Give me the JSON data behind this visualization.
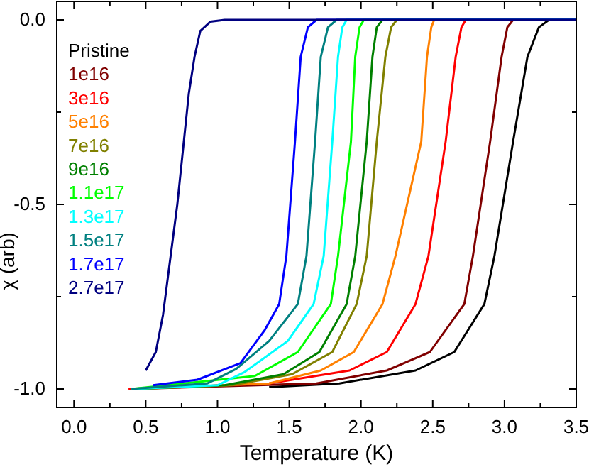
{
  "chart_data": {
    "type": "line",
    "xlabel": "Temperature (K)",
    "ylabel": "χ (arb)",
    "xlim": [
      -0.12,
      3.5
    ],
    "ylim": [
      -1.05,
      0.05
    ],
    "xticks": [
      {
        "value": 0,
        "label": "0.0"
      },
      {
        "value": 0.25,
        "label": null
      },
      {
        "value": 0.5,
        "label": "0.5"
      },
      {
        "value": 0.75,
        "label": null
      },
      {
        "value": 1,
        "label": "1.0"
      },
      {
        "value": 1.25,
        "label": null
      },
      {
        "value": 1.5,
        "label": "1.5"
      },
      {
        "value": 1.75,
        "label": null
      },
      {
        "value": 2,
        "label": "2.0"
      },
      {
        "value": 2.25,
        "label": null
      },
      {
        "value": 2.5,
        "label": "2.5"
      },
      {
        "value": 2.75,
        "label": null
      },
      {
        "value": 3,
        "label": "3.0"
      },
      {
        "value": 3.25,
        "label": null
      },
      {
        "value": 3.5,
        "label": "3.5"
      }
    ],
    "yticks": [
      {
        "value": 0,
        "label": "0.0"
      },
      {
        "value": -0.25,
        "label": null
      },
      {
        "value": -0.5,
        "label": "-0.5"
      },
      {
        "value": -0.75,
        "label": null
      },
      {
        "value": -1,
        "label": "-1.0"
      }
    ],
    "grid": false,
    "legend": "top left",
    "marker": "none",
    "line_style": "solid",
    "series": [
      {
        "name": "Pristine",
        "color": "#000000",
        "x": [
          1.36,
          1.85,
          2.38,
          2.65,
          2.86,
          2.93,
          3.06,
          3.16,
          3.24,
          3.31,
          3.5
        ],
        "values": [
          -0.995,
          -0.985,
          -0.95,
          -0.9,
          -0.77,
          -0.64,
          -0.33,
          -0.1,
          -0.02,
          0,
          0
        ]
      },
      {
        "name": "1e16",
        "color": "#800000",
        "x": [
          0.4,
          1.69,
          2.18,
          2.48,
          2.72,
          2.78,
          2.9,
          2.98,
          3.02,
          3.06,
          3.5
        ],
        "values": [
          -1,
          -0.985,
          -0.95,
          -0.9,
          -0.77,
          -0.64,
          -0.33,
          -0.1,
          -0.02,
          0,
          0
        ]
      },
      {
        "name": "3e16",
        "color": "#ff0000",
        "x": [
          0.38,
          1.36,
          1.92,
          2.18,
          2.38,
          2.47,
          2.59,
          2.66,
          2.7,
          2.73,
          3.5
        ],
        "values": [
          -1,
          -0.985,
          -0.95,
          -0.9,
          -0.77,
          -0.64,
          -0.33,
          -0.1,
          -0.02,
          0,
          0
        ]
      },
      {
        "name": "5e16",
        "color": "#ff8000",
        "x": [
          0.4,
          1.36,
          1.72,
          1.95,
          2.15,
          2.24,
          2.42,
          2.46,
          2.49,
          2.51,
          3.5
        ],
        "values": [
          -1,
          -0.985,
          -0.95,
          -0.9,
          -0.77,
          -0.64,
          -0.33,
          -0.1,
          -0.02,
          0,
          0
        ]
      },
      {
        "name": "7e16",
        "color": "#808000",
        "x": [
          0.4,
          1.1,
          1.52,
          1.8,
          1.97,
          2.04,
          2.11,
          2.17,
          2.21,
          2.25,
          3.5
        ],
        "values": [
          -1,
          -0.99,
          -0.96,
          -0.9,
          -0.77,
          -0.64,
          -0.33,
          -0.1,
          -0.02,
          0,
          0
        ]
      },
      {
        "name": "9e16",
        "color": "#008000",
        "x": [
          0.4,
          1.05,
          1.46,
          1.71,
          1.9,
          1.96,
          2.04,
          2.08,
          2.11,
          2.15,
          3.5
        ],
        "values": [
          -1,
          -0.99,
          -0.96,
          -0.9,
          -0.77,
          -0.64,
          -0.33,
          -0.1,
          -0.02,
          0,
          0
        ]
      },
      {
        "name": "1.1e17",
        "color": "#00ff00",
        "x": [
          0.4,
          1.26,
          1.56,
          1.79,
          1.84,
          1.93,
          1.96,
          1.99,
          2.02,
          3.5
        ],
        "values": [
          -1,
          -0.965,
          -0.9,
          -0.77,
          -0.64,
          -0.33,
          -0.1,
          -0.02,
          0,
          0
        ]
      },
      {
        "name": "1.3e17",
        "color": "#00ffff",
        "x": [
          0.4,
          1.0,
          1.19,
          1.49,
          1.67,
          1.74,
          1.8,
          1.84,
          1.87,
          1.9,
          3.5
        ],
        "values": [
          -1,
          -0.99,
          -0.954,
          -0.87,
          -0.77,
          -0.64,
          -0.33,
          -0.1,
          -0.02,
          0,
          0
        ]
      },
      {
        "name": "1.5e17",
        "color": "#008080",
        "x": [
          0.4,
          0.93,
          1.13,
          1.36,
          1.56,
          1.62,
          1.68,
          1.72,
          1.77,
          1.83,
          3.5
        ],
        "values": [
          -1,
          -0.985,
          -0.946,
          -0.87,
          -0.77,
          -0.64,
          -0.33,
          -0.1,
          -0.02,
          0,
          0
        ]
      },
      {
        "name": "1.7e17",
        "color": "#0000ff",
        "x": [
          0.55,
          0.86,
          1.16,
          1.33,
          1.43,
          1.48,
          1.54,
          1.58,
          1.63,
          1.69,
          3.5
        ],
        "values": [
          -0.99,
          -0.975,
          -0.93,
          -0.84,
          -0.77,
          -0.64,
          -0.33,
          -0.1,
          -0.02,
          0,
          0
        ]
      },
      {
        "name": "2.7e17",
        "color": "#000080",
        "x": [
          0.5,
          0.57,
          0.62,
          0.67,
          0.72,
          0.76,
          0.8,
          0.84,
          0.88,
          0.95,
          1.05,
          3.5
        ],
        "values": [
          -0.95,
          -0.9,
          -0.8,
          -0.65,
          -0.5,
          -0.35,
          -0.2,
          -0.1,
          -0.03,
          -0.005,
          0,
          0
        ]
      }
    ]
  }
}
